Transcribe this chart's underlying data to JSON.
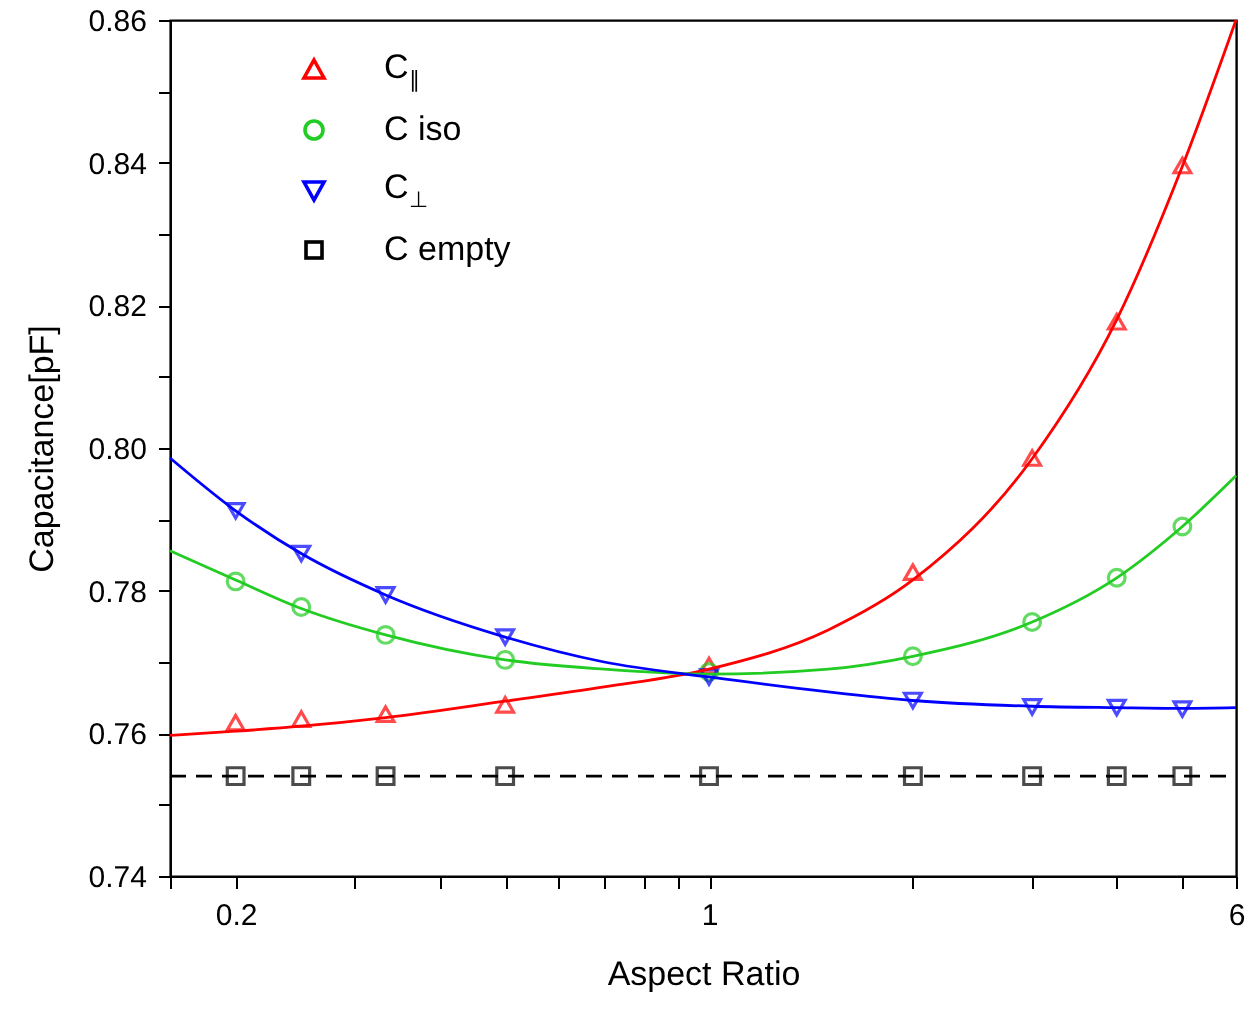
{
  "chart_data": {
    "type": "scatter",
    "xlabel": "Aspect Ratio",
    "ylabel": "Capacitance[pF]",
    "log": "x",
    "legend": "top left",
    "x": [
      0.2,
      0.25,
      0.333,
      0.5,
      1,
      2,
      3,
      4,
      5
    ],
    "xlim": [
      0.16,
      6
    ],
    "xticks": [
      {
        "value": 0.16,
        "label": null
      },
      0.2,
      {
        "value": 0.3,
        "label": null
      },
      {
        "value": 0.4,
        "label": null
      },
      {
        "value": 0.5,
        "label": null
      },
      {
        "value": 0.6,
        "label": null
      },
      {
        "value": 0.7,
        "label": null
      },
      {
        "value": 0.8,
        "label": null
      },
      {
        "value": 0.9,
        "label": null
      },
      1,
      {
        "value": 2,
        "label": null
      },
      {
        "value": 3,
        "label": null
      },
      {
        "value": 4,
        "label": null
      },
      {
        "value": 5,
        "label": null
      },
      6
    ],
    "ylim": [
      0.74,
      0.86
    ],
    "yticks": [
      0.74,
      {
        "value": 0.75,
        "label": null
      },
      0.76,
      {
        "value": 0.77,
        "label": null
      },
      0.78,
      {
        "value": 0.79,
        "label": null
      },
      {
        "value": 0.8,
        "label": "0.80"
      },
      {
        "value": 0.81,
        "label": null
      },
      0.82,
      {
        "value": 0.83,
        "label": null
      },
      0.84,
      {
        "value": 0.85,
        "label": null
      },
      0.86
    ],
    "series": [
      {
        "name": "C$_{∥}$",
        "marker": "triangle",
        "color": "#ff0000",
        "values": [
          0.7615,
          0.762,
          0.7627,
          0.764,
          0.7695,
          0.7826,
          0.7986,
          0.8177,
          0.8396
        ]
      },
      {
        "name": "C iso",
        "marker": "circle",
        "color": "#22cc22",
        "values": [
          0.7813,
          0.7777,
          0.7738,
          0.7703,
          0.7686,
          0.7708,
          0.7756,
          0.7818,
          0.789
        ]
      },
      {
        "name": "C$_{⊥}$",
        "marker": "triangle-down",
        "color": "#0000ff",
        "values": [
          0.7912,
          0.7852,
          0.7794,
          0.7735,
          0.7679,
          0.7646,
          0.7637,
          0.7636,
          0.7634
        ]
      },
      {
        "name": "C empty",
        "marker": "square",
        "color": "#000000",
        "values": [
          0.754,
          0.754,
          0.754,
          0.754,
          0.754,
          0.754,
          0.754,
          0.754,
          0.754
        ]
      },
      {
        "type": "line",
        "color": "#ff0000",
        "x": [
          0.16,
          0.2,
          0.25,
          0.333,
          0.5,
          0.7,
          1,
          1.5,
          2,
          3,
          4,
          5,
          6
        ],
        "values": [
          0.7597,
          0.7603,
          0.761,
          0.7622,
          0.7645,
          0.7665,
          0.769,
          0.7745,
          0.7815,
          0.7985,
          0.818,
          0.8395,
          0.86
        ]
      },
      {
        "type": "line",
        "color": "#22cc22",
        "x": [
          0.16,
          0.2,
          0.25,
          0.333,
          0.5,
          0.7,
          1,
          1.5,
          2,
          3,
          4,
          5,
          6
        ],
        "values": [
          0.7856,
          0.7815,
          0.7775,
          0.7738,
          0.7703,
          0.769,
          0.7683,
          0.769,
          0.7708,
          0.7756,
          0.7818,
          0.789,
          0.7961
        ]
      },
      {
        "type": "line",
        "color": "#0000ff",
        "x": [
          0.16,
          0.2,
          0.25,
          0.333,
          0.5,
          0.7,
          1,
          1.5,
          2,
          3,
          4,
          5,
          6
        ],
        "values": [
          0.7986,
          0.7912,
          0.7852,
          0.7794,
          0.7735,
          0.77,
          0.7679,
          0.7658,
          0.7646,
          0.7638,
          0.7636,
          0.7635,
          0.7636
        ]
      },
      {
        "type": "line",
        "line_style": "dashed",
        "color": "#000000",
        "x": [
          0.16,
          6
        ],
        "values": [
          0.754,
          0.754
        ]
      }
    ]
  }
}
